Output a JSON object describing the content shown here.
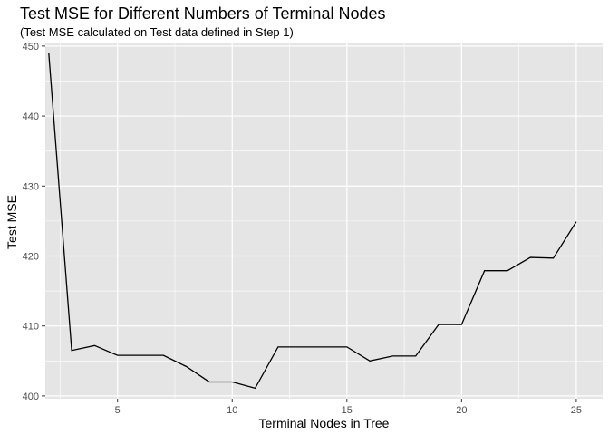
{
  "chart_data": {
    "type": "line",
    "title": "Test MSE for Different Numbers of Terminal Nodes",
    "subtitle": "(Test MSE calculated on Test data defined in Step 1)",
    "xlabel": "Terminal Nodes in Tree",
    "ylabel": "Test MSE",
    "x": [
      2,
      3,
      4,
      5,
      6,
      7,
      8,
      9,
      10,
      11,
      12,
      13,
      14,
      15,
      16,
      17,
      18,
      19,
      20,
      21,
      22,
      23,
      24,
      25
    ],
    "y": [
      449.0,
      406.5,
      407.2,
      405.8,
      405.8,
      405.8,
      404.2,
      402.0,
      402.0,
      401.1,
      407.0,
      407.0,
      407.0,
      407.0,
      405.0,
      405.7,
      405.7,
      410.2,
      410.2,
      417.9,
      417.9,
      419.8,
      419.7,
      424.9
    ],
    "xlim": [
      1.85,
      26.15
    ],
    "ylim": [
      399.6,
      450.5
    ],
    "x_ticks": [
      5,
      10,
      15,
      20,
      25
    ],
    "x_tick_labels": [
      "5",
      "10",
      "15",
      "20",
      "25"
    ],
    "y_ticks": [
      400,
      410,
      420,
      430,
      440,
      450
    ],
    "y_tick_labels": [
      "400",
      "410",
      "420",
      "430",
      "440",
      "450"
    ],
    "grid": true,
    "colors": {
      "panel": "#e5e5e5",
      "grid_major": "#ffffff",
      "line": "#000000"
    }
  }
}
